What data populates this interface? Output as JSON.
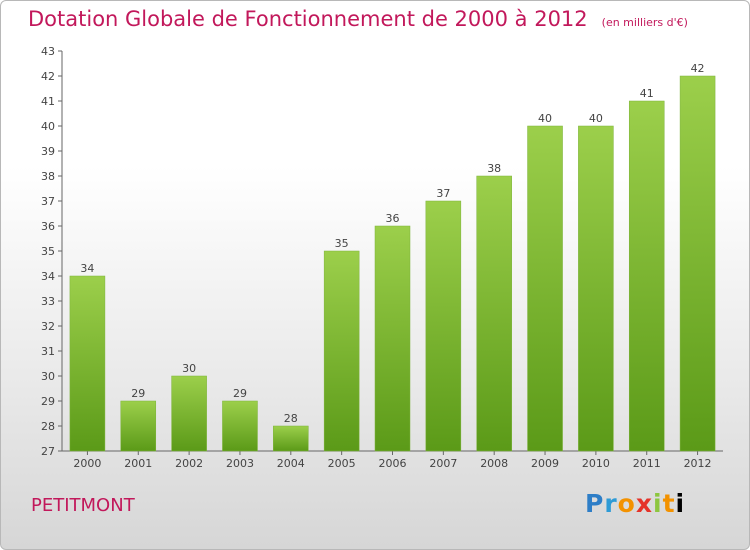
{
  "header": {
    "title": "Dotation Globale de Fonctionnement de 2000 à 2012",
    "unit": "(en milliers d'€)"
  },
  "footer": {
    "commune": "PETITMONT",
    "logo_letters": [
      "P",
      "r",
      "o",
      "x",
      "i",
      "t",
      "i"
    ]
  },
  "colors": {
    "title": "#c2185b",
    "bar_light": "#9ccf4b",
    "bar_dark": "#5b9a18",
    "axis": "#666666"
  },
  "chart_data": {
    "type": "bar",
    "title": "Dotation Globale de Fonctionnement de 2000 à 2012",
    "subtitle": "(en milliers d'€)",
    "categories": [
      "2000",
      "2001",
      "2002",
      "2003",
      "2004",
      "2005",
      "2006",
      "2007",
      "2008",
      "2009",
      "2010",
      "2011",
      "2012"
    ],
    "values": [
      34,
      29,
      30,
      29,
      28,
      35,
      36,
      37,
      38,
      40,
      40,
      41,
      42
    ],
    "data_labels": [
      "34",
      "29",
      "30",
      "29",
      "28",
      "35",
      "36",
      "37",
      "38",
      "40",
      "40",
      "41",
      "42"
    ],
    "ylim": [
      27,
      43
    ],
    "yticks": [
      "27",
      "28",
      "29",
      "30",
      "31",
      "32",
      "33",
      "34",
      "35",
      "36",
      "37",
      "38",
      "39",
      "40",
      "41",
      "42",
      "43"
    ],
    "grid": false,
    "legend": "none"
  }
}
